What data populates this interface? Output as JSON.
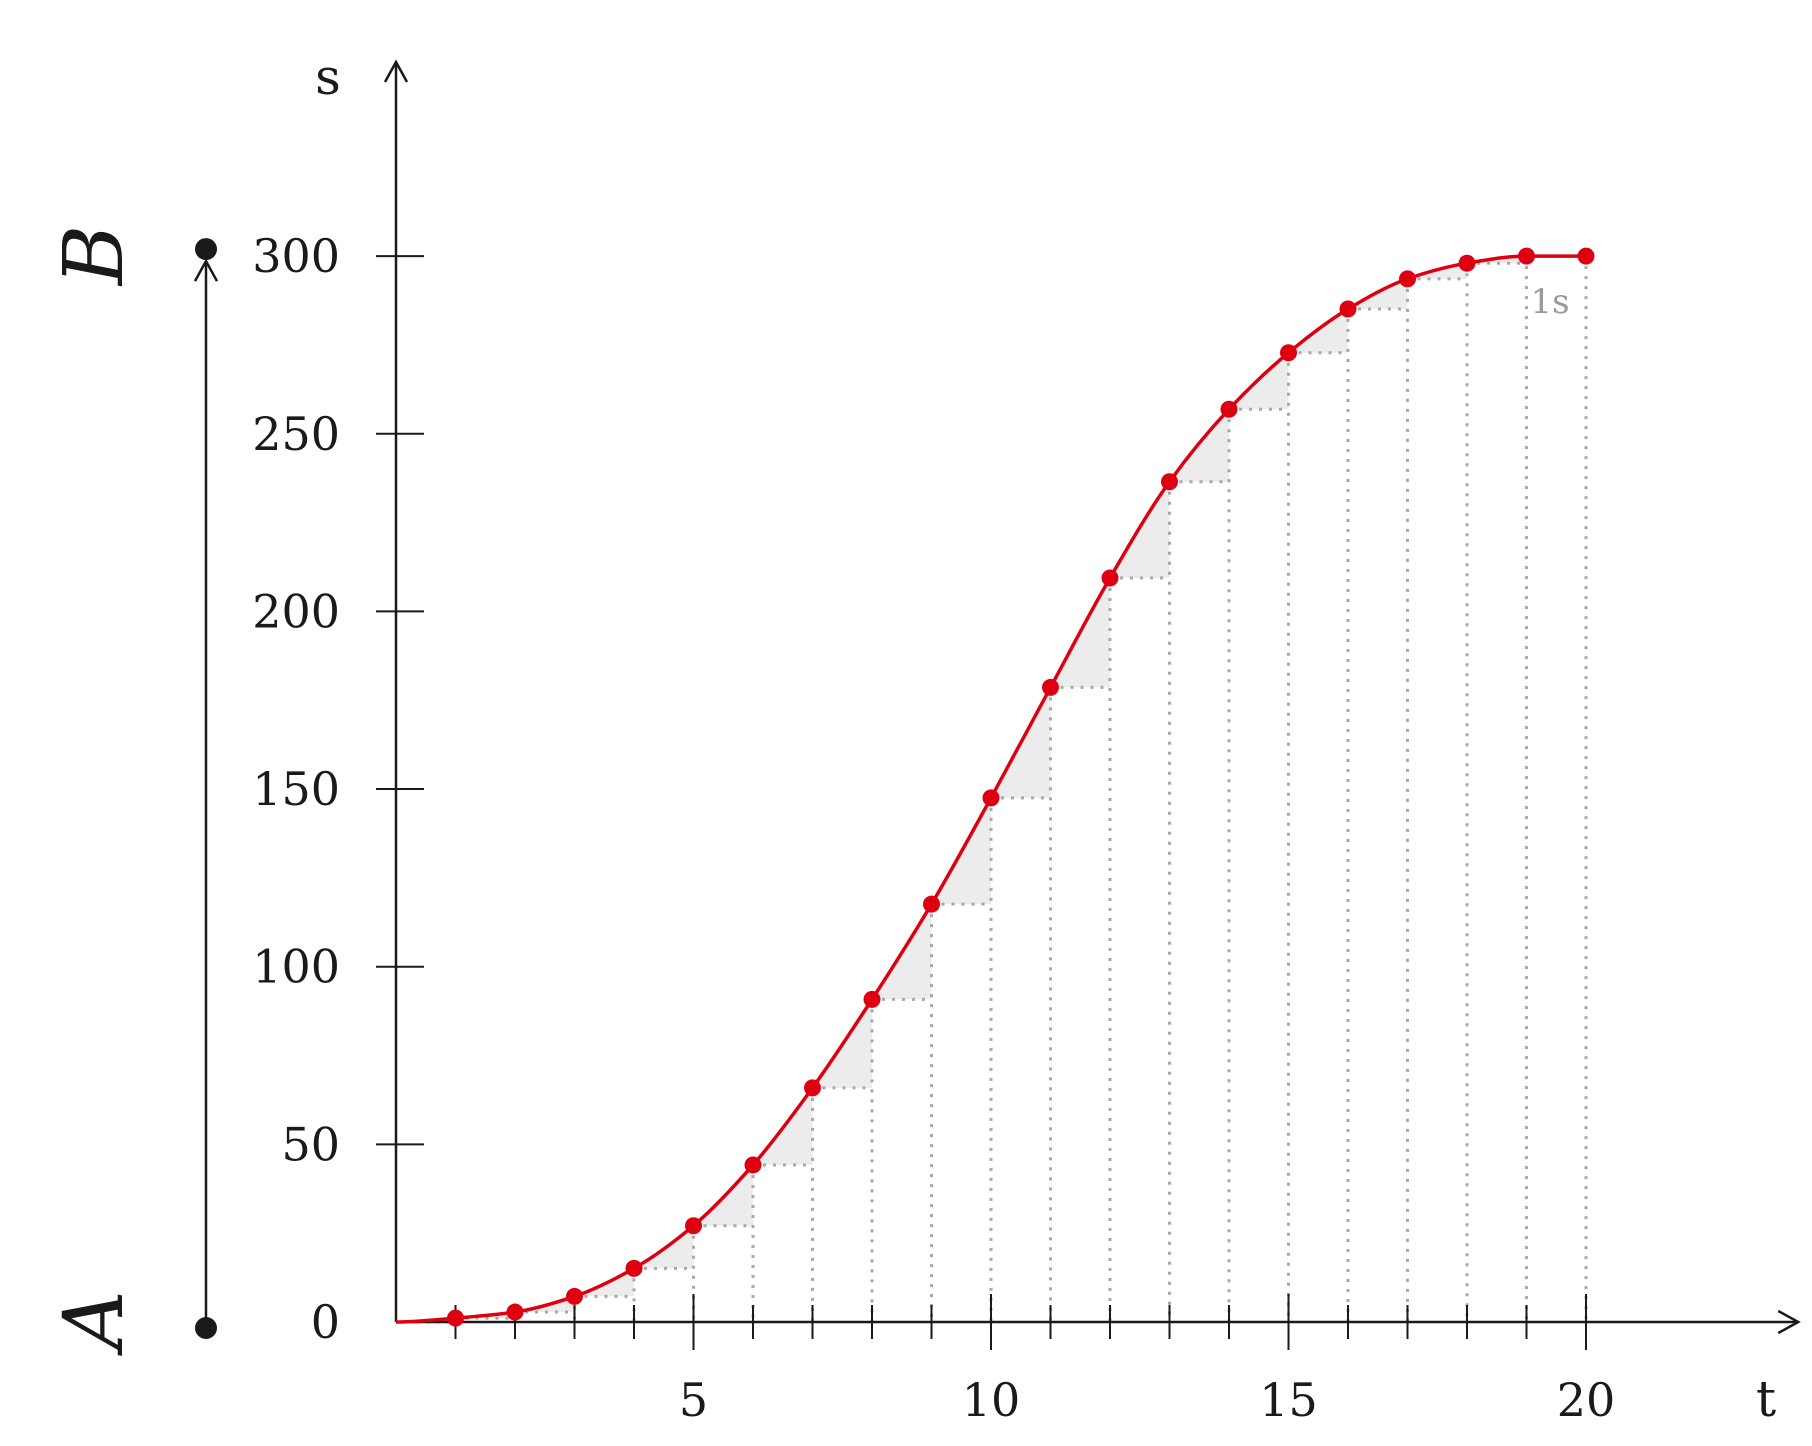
{
  "chart_data": {
    "type": "line",
    "xlabel": "t",
    "ylabel": "s",
    "xlim": [
      0,
      23.5
    ],
    "ylim": [
      0,
      330
    ],
    "x_ticks": [
      5,
      10,
      15,
      20
    ],
    "x_minor_ticks": [
      1,
      2,
      3,
      4,
      5,
      6,
      7,
      8,
      9,
      10,
      11,
      12,
      13,
      14,
      15,
      16,
      17,
      18,
      19,
      20
    ],
    "y_ticks": [
      0,
      50,
      100,
      150,
      200,
      250,
      300
    ],
    "grid": false,
    "step_annotation": "1s",
    "endpoints": {
      "start": "A",
      "end": "B",
      "start_value": 0,
      "end_value": 300
    },
    "series": [
      {
        "x": [
          1,
          2,
          3,
          4,
          5,
          6,
          7,
          8,
          9,
          10,
          11,
          12,
          13,
          14,
          15,
          16,
          17,
          18,
          19,
          20
        ],
        "values": [
          1.1,
          2.8,
          7.2,
          15.1,
          27.1,
          44.2,
          65.9,
          90.8,
          117.6,
          147.5,
          178.6,
          209.4,
          236.5,
          256.9,
          272.8,
          285.1,
          293.6,
          298.0,
          300.0,
          300.0
        ]
      }
    ],
    "colors": {
      "curve": "#dd0011",
      "axis": "#1a1a1a",
      "steps": "#a8a8a8",
      "fill": "#ececec"
    }
  }
}
